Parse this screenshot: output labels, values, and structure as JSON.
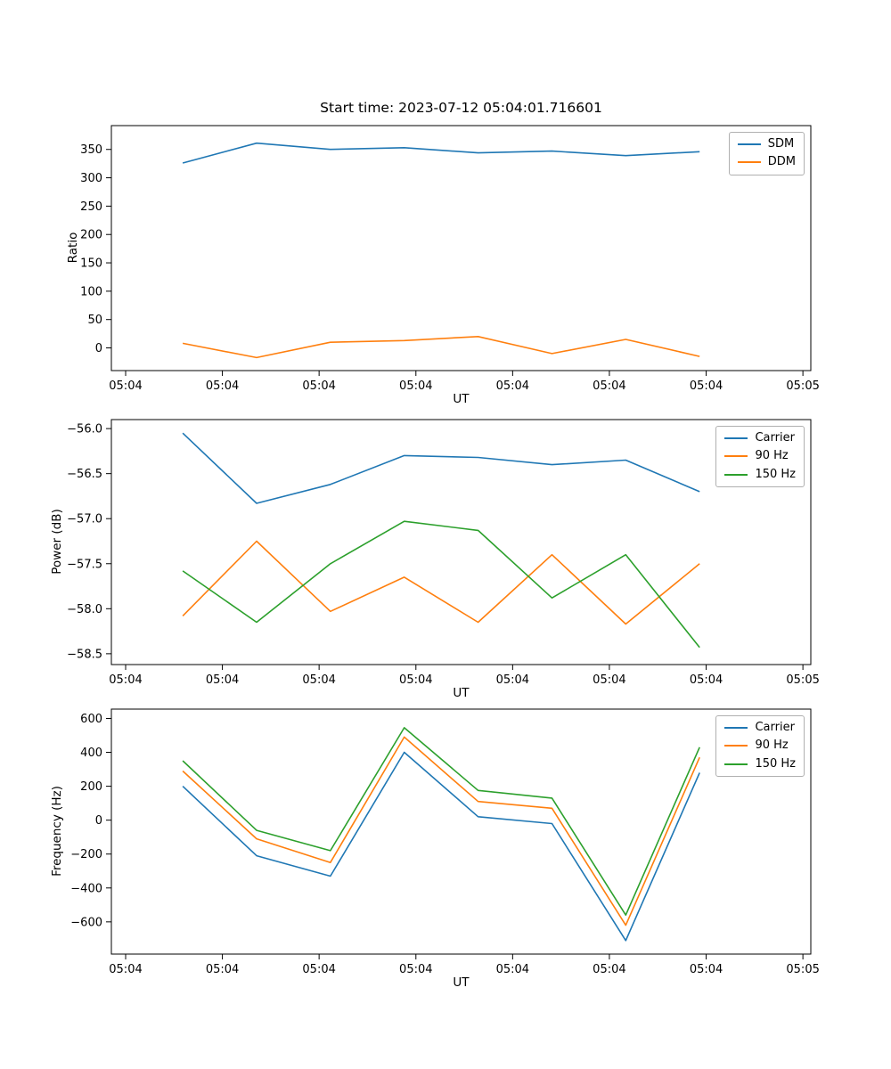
{
  "figure_title": "Start time: 2023-07-12 05:04:01.716601",
  "chart_data": [
    {
      "id": "ratio",
      "type": "line",
      "title": "Start time: 2023-07-12 05:04:01.716601",
      "xlabel": "UT",
      "ylabel": "Ratio",
      "xlim": [
        0,
        1
      ],
      "ylim": [
        -40,
        392
      ],
      "grid": false,
      "legend_position": "upper right",
      "xticks": [
        0.0204,
        0.1587,
        0.297,
        0.4354,
        0.5737,
        0.712,
        0.8504,
        0.9887
      ],
      "xtick_labels": [
        "05:04",
        "05:04",
        "05:04",
        "05:04",
        "05:04",
        "05:04",
        "05:04",
        "05:05"
      ],
      "yticks": [
        0,
        50,
        100,
        150,
        200,
        250,
        300,
        350
      ],
      "ytick_labels": [
        "0",
        "50",
        "100",
        "150",
        "200",
        "250",
        "300",
        "350"
      ],
      "x": [
        0.102,
        0.2076,
        0.3131,
        0.4187,
        0.5243,
        0.6299,
        0.7354,
        0.841
      ],
      "series": [
        {
          "name": "SDM",
          "color": "#1f77b4",
          "values": [
            326,
            361,
            350,
            353,
            344,
            347,
            339,
            346
          ]
        },
        {
          "name": "DDM",
          "color": "#ff7f0e",
          "values": [
            8,
            -17,
            10,
            13,
            20,
            -10,
            15,
            -15
          ]
        }
      ]
    },
    {
      "id": "power",
      "type": "line",
      "title": "",
      "xlabel": "UT",
      "ylabel": "Power (dB)",
      "xlim": [
        0,
        1
      ],
      "ylim": [
        -58.62,
        -55.9
      ],
      "grid": false,
      "legend_position": "upper right",
      "xticks": [
        0.0204,
        0.1587,
        0.297,
        0.4354,
        0.5737,
        0.712,
        0.8504,
        0.9887
      ],
      "xtick_labels": [
        "05:04",
        "05:04",
        "05:04",
        "05:04",
        "05:04",
        "05:04",
        "05:04",
        "05:05"
      ],
      "yticks": [
        -56.0,
        -56.5,
        -57.0,
        -57.5,
        -58.0,
        -58.5
      ],
      "ytick_labels": [
        "−56.0",
        "−56.5",
        "−57.0",
        "−57.5",
        "−58.0",
        "−58.5"
      ],
      "x": [
        0.102,
        0.2076,
        0.3131,
        0.4187,
        0.5243,
        0.6299,
        0.7354,
        0.841
      ],
      "series": [
        {
          "name": "Carrier",
          "color": "#1f77b4",
          "values": [
            -56.05,
            -56.83,
            -56.62,
            -56.3,
            -56.32,
            -56.4,
            -56.35,
            -56.7
          ]
        },
        {
          "name": "90 Hz",
          "color": "#ff7f0e",
          "values": [
            -58.08,
            -57.25,
            -58.03,
            -57.65,
            -58.15,
            -57.4,
            -58.17,
            -57.5
          ]
        },
        {
          "name": "150 Hz",
          "color": "#2ca02c",
          "values": [
            -57.58,
            -58.15,
            -57.5,
            -57.03,
            -57.13,
            -57.88,
            -57.4,
            -58.43
          ]
        }
      ]
    },
    {
      "id": "frequency",
      "type": "line",
      "title": "",
      "xlabel": "UT",
      "ylabel": "Frequency (Hz)",
      "xlim": [
        0,
        1
      ],
      "ylim": [
        -790,
        655
      ],
      "grid": false,
      "legend_position": "upper right",
      "xticks": [
        0.0204,
        0.1587,
        0.297,
        0.4354,
        0.5737,
        0.712,
        0.8504,
        0.9887
      ],
      "xtick_labels": [
        "05:04",
        "05:04",
        "05:04",
        "05:04",
        "05:04",
        "05:04",
        "05:04",
        "05:05"
      ],
      "yticks": [
        -600,
        -400,
        -200,
        0,
        200,
        400,
        600
      ],
      "ytick_labels": [
        "−600",
        "−400",
        "−200",
        "0",
        "200",
        "400",
        "600"
      ],
      "x": [
        0.102,
        0.2076,
        0.3131,
        0.4187,
        0.5243,
        0.6299,
        0.7354,
        0.841
      ],
      "series": [
        {
          "name": "Carrier",
          "color": "#1f77b4",
          "values": [
            200,
            -210,
            -330,
            400,
            20,
            -20,
            -710,
            280
          ]
        },
        {
          "name": "90 Hz",
          "color": "#ff7f0e",
          "values": [
            290,
            -110,
            -250,
            490,
            110,
            70,
            -620,
            370
          ]
        },
        {
          "name": "150 Hz",
          "color": "#2ca02c",
          "values": [
            350,
            -60,
            -180,
            545,
            175,
            130,
            -560,
            430
          ]
        }
      ]
    }
  ]
}
